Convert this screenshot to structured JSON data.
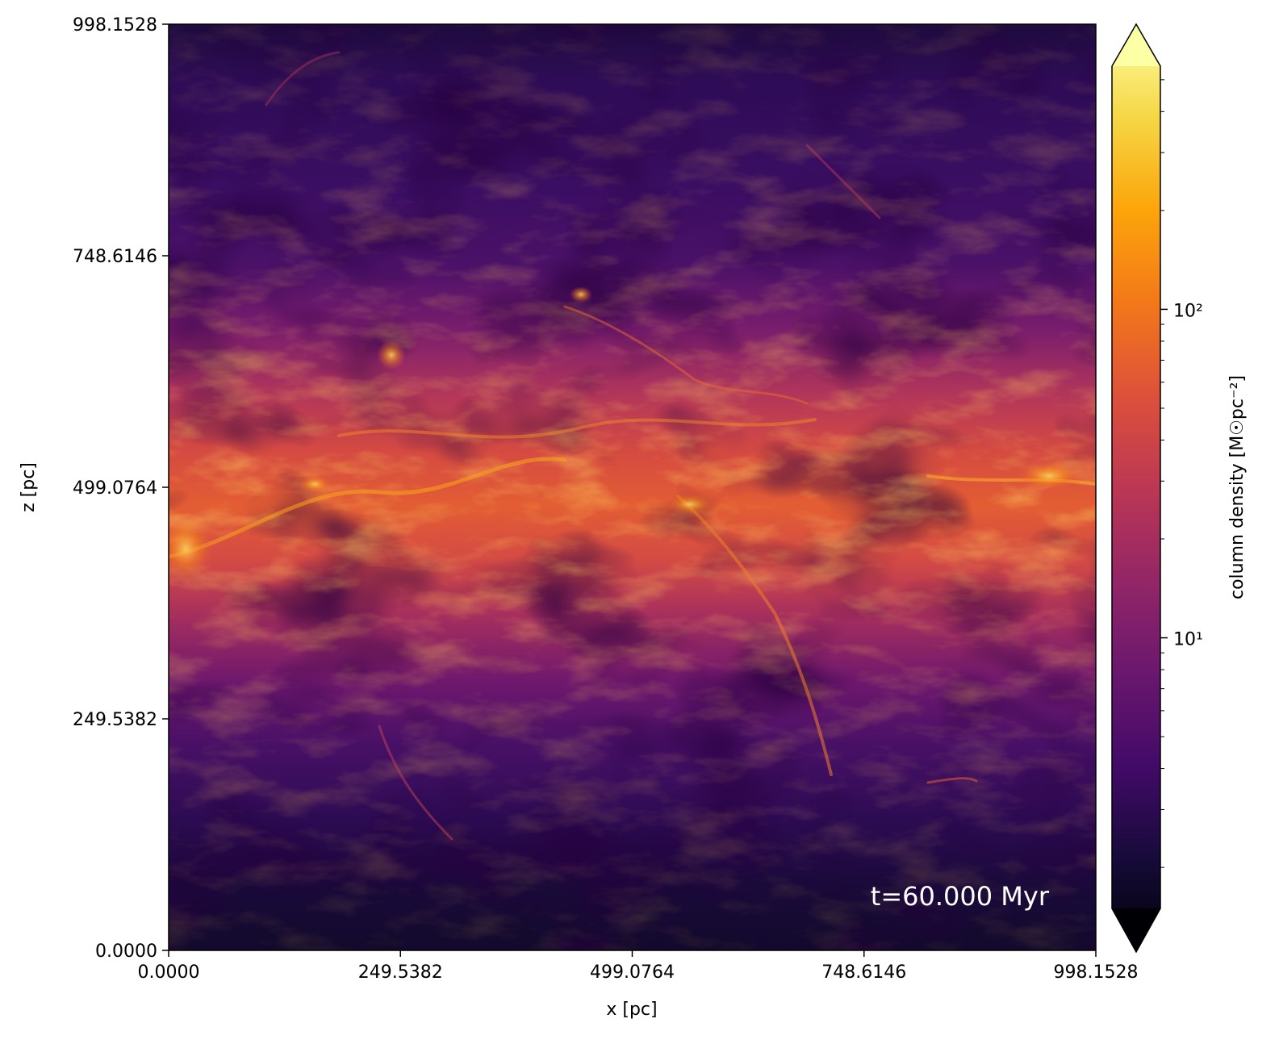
{
  "chart_data": {
    "type": "heatmap",
    "title": "",
    "xlabel": "x [pc]",
    "ylabel": "z [pc]",
    "xlim": [
      0.0,
      998.1528
    ],
    "ylim": [
      0.0,
      998.1528
    ],
    "xticks": [
      0.0,
      249.5382,
      499.0764,
      748.6146,
      998.1528
    ],
    "xtick_labels": [
      "0.0000",
      "249.5382",
      "499.0764",
      "748.6146",
      "998.1528"
    ],
    "yticks": [
      0.0,
      249.5382,
      499.0764,
      748.6146,
      998.1528
    ],
    "ytick_labels": [
      "0.0000",
      "249.5382",
      "499.0764",
      "748.6146",
      "998.1528"
    ],
    "annotation": "t=60.000 Myr",
    "colorbar": {
      "label": "column density [M☉pc⁻²]",
      "scale": "log",
      "range": [
        1.5,
        550
      ],
      "extend": "both",
      "colormap": "inferno",
      "ticks": [
        10,
        100
      ],
      "tick_labels": [
        "10¹",
        "10²"
      ]
    },
    "description_of_field": {
      "dense_band_center_z": 499.0764,
      "dense_band_half_width_z": 150,
      "peak_column_density": 400,
      "background_column_density": 4
    }
  }
}
